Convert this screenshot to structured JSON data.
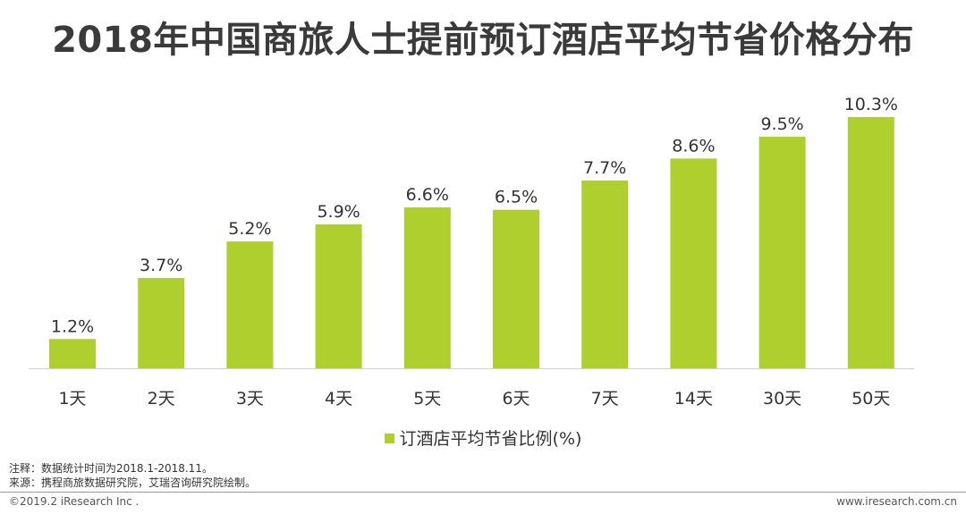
{
  "title": "2018年中国商旅人士提前预订酒店平均节省价格分布",
  "chart_data": {
    "type": "bar",
    "title": "2018年中国商旅人士提前预订酒店平均节省价格分布",
    "categories": [
      "1天",
      "2天",
      "3天",
      "4天",
      "5天",
      "6天",
      "7天",
      "14天",
      "30天",
      "50天"
    ],
    "series": [
      {
        "name": "订酒店平均节省比例(%)",
        "values": [
          1.2,
          3.7,
          5.2,
          5.9,
          6.6,
          6.5,
          7.7,
          8.6,
          9.5,
          10.3
        ],
        "labels": [
          "1.2%",
          "3.7%",
          "5.2%",
          "5.9%",
          "6.6%",
          "6.5%",
          "7.7%",
          "8.6%",
          "9.5%",
          "10.3%"
        ],
        "color": "#aecf2e"
      }
    ],
    "ylim": [
      0,
      10.3
    ],
    "grid": false,
    "legend_position": "bottom"
  },
  "legend": {
    "label": "订酒店平均节省比例(%)",
    "color": "#aecf2e"
  },
  "notes": {
    "note1": "注释：数据统计时间为2018.1-2018.11。",
    "note2": "来源：携程商旅数据研究院，艾瑞咨询研究院绘制。"
  },
  "footer": {
    "copyright": "©2019.2 iResearch Inc .",
    "website": "www.iresearch.com.cn"
  }
}
